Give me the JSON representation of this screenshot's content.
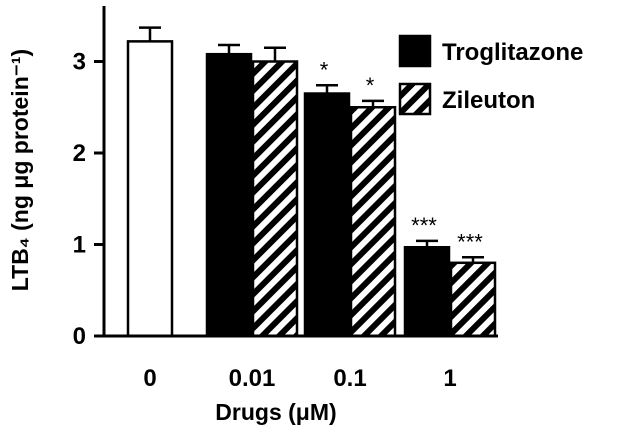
{
  "chart_data": {
    "type": "bar",
    "title": "",
    "xlabel": "Drugs (μM)",
    "ylabel": "LTB₄ (ng μg protein⁻¹)",
    "ylim": [
      0,
      3.5
    ],
    "yticks": [
      "0",
      "1",
      "2",
      "3"
    ],
    "categories": [
      "0",
      "0.01",
      "0.1",
      "1"
    ],
    "control": {
      "category": "0",
      "value": 3.22,
      "error": 0.15,
      "fill": "white"
    },
    "series": [
      {
        "name": "Troglitazone",
        "fill": "black",
        "values": [
          null,
          3.08,
          2.65,
          0.97
        ],
        "errors": [
          null,
          0.1,
          0.09,
          0.07
        ],
        "significance": [
          null,
          "",
          "*",
          "***"
        ]
      },
      {
        "name": "Zileuton",
        "fill": "hatched",
        "values": [
          null,
          3.0,
          2.5,
          0.8
        ],
        "errors": [
          null,
          0.15,
          0.07,
          0.06
        ],
        "significance": [
          null,
          "",
          "*",
          "***"
        ]
      }
    ],
    "legend_position": "top-right",
    "grid": false
  }
}
